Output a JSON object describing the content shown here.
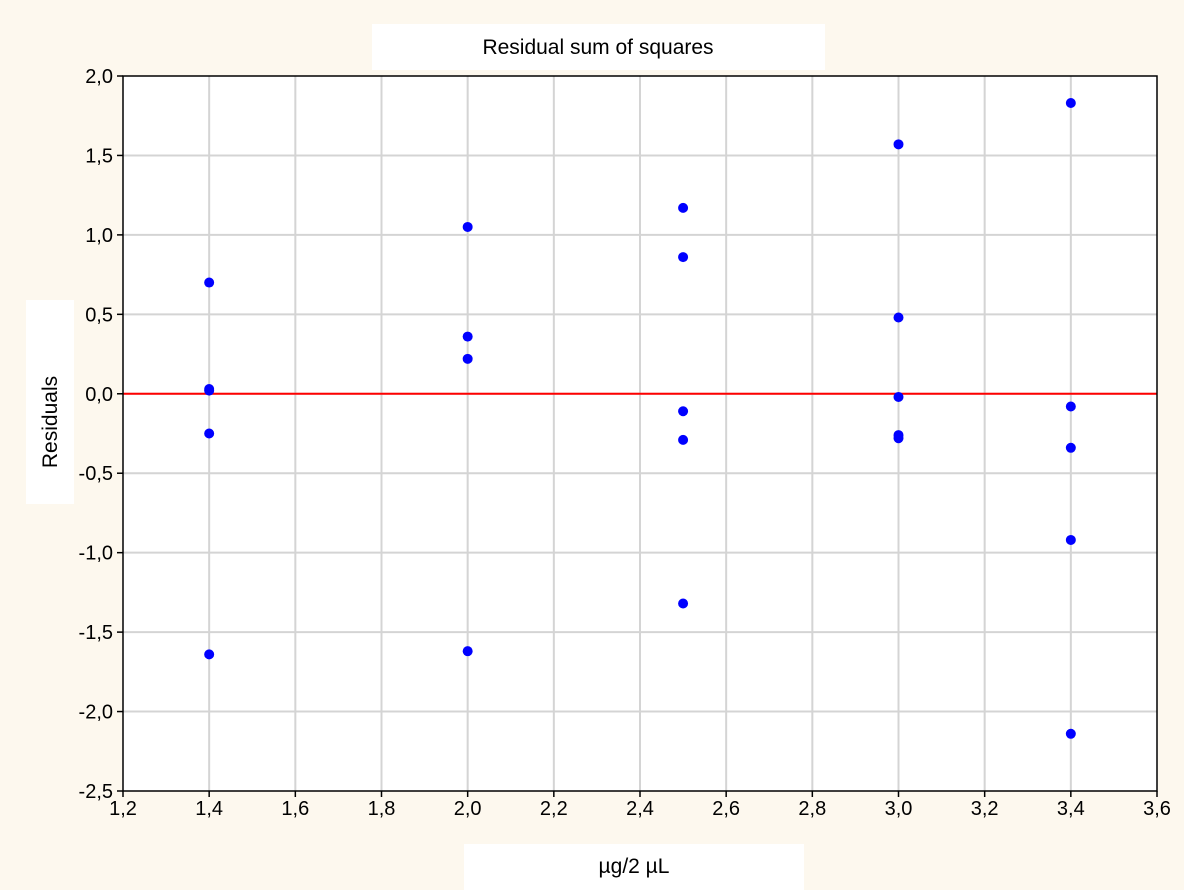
{
  "chart_data": {
    "type": "scatter",
    "title": "Residual sum of squares",
    "xlabel": "µg/2 µL",
    "ylabel": "Residuals",
    "xlim": [
      1.2,
      3.6
    ],
    "ylim": [
      -2.5,
      2.0
    ],
    "x_ticks": [
      "1,2",
      "1,4",
      "1,6",
      "1,8",
      "2,0",
      "2,2",
      "2,4",
      "2,6",
      "2,8",
      "3,0",
      "3,2",
      "3,4",
      "3,6"
    ],
    "y_ticks": [
      "2,0",
      "1,5",
      "1,0",
      "0,5",
      "0,0",
      "-0,5",
      "-1,0",
      "-1,5",
      "-2,0",
      "-2,5"
    ],
    "x_tick_values": [
      1.2,
      1.4,
      1.6,
      1.8,
      2.0,
      2.2,
      2.4,
      2.6,
      2.8,
      3.0,
      3.2,
      3.4,
      3.6
    ],
    "y_tick_values": [
      2.0,
      1.5,
      1.0,
      0.5,
      0.0,
      -0.5,
      -1.0,
      -1.5,
      -2.0,
      -2.5
    ],
    "grid": true,
    "reference_line": {
      "y": 0.0,
      "color": "#ff0000"
    },
    "marker_color": "#0000ff",
    "points": [
      {
        "x": 1.4,
        "y": 0.7
      },
      {
        "x": 1.4,
        "y": 0.03
      },
      {
        "x": 1.4,
        "y": 0.02
      },
      {
        "x": 1.4,
        "y": -0.25
      },
      {
        "x": 1.4,
        "y": -1.64
      },
      {
        "x": 2.0,
        "y": 1.05
      },
      {
        "x": 2.0,
        "y": 0.36
      },
      {
        "x": 2.0,
        "y": 0.22
      },
      {
        "x": 2.0,
        "y": -1.62
      },
      {
        "x": 2.5,
        "y": 1.17
      },
      {
        "x": 2.5,
        "y": 0.86
      },
      {
        "x": 2.5,
        "y": -0.11
      },
      {
        "x": 2.5,
        "y": -0.29
      },
      {
        "x": 2.5,
        "y": -1.32
      },
      {
        "x": 3.0,
        "y": 1.57
      },
      {
        "x": 3.0,
        "y": 0.48
      },
      {
        "x": 3.0,
        "y": -0.02
      },
      {
        "x": 3.0,
        "y": -0.26
      },
      {
        "x": 3.0,
        "y": -0.28
      },
      {
        "x": 3.4,
        "y": 1.83
      },
      {
        "x": 3.4,
        "y": -0.08
      },
      {
        "x": 3.4,
        "y": -0.34
      },
      {
        "x": 3.4,
        "y": -0.92
      },
      {
        "x": 3.4,
        "y": -2.14
      }
    ]
  }
}
